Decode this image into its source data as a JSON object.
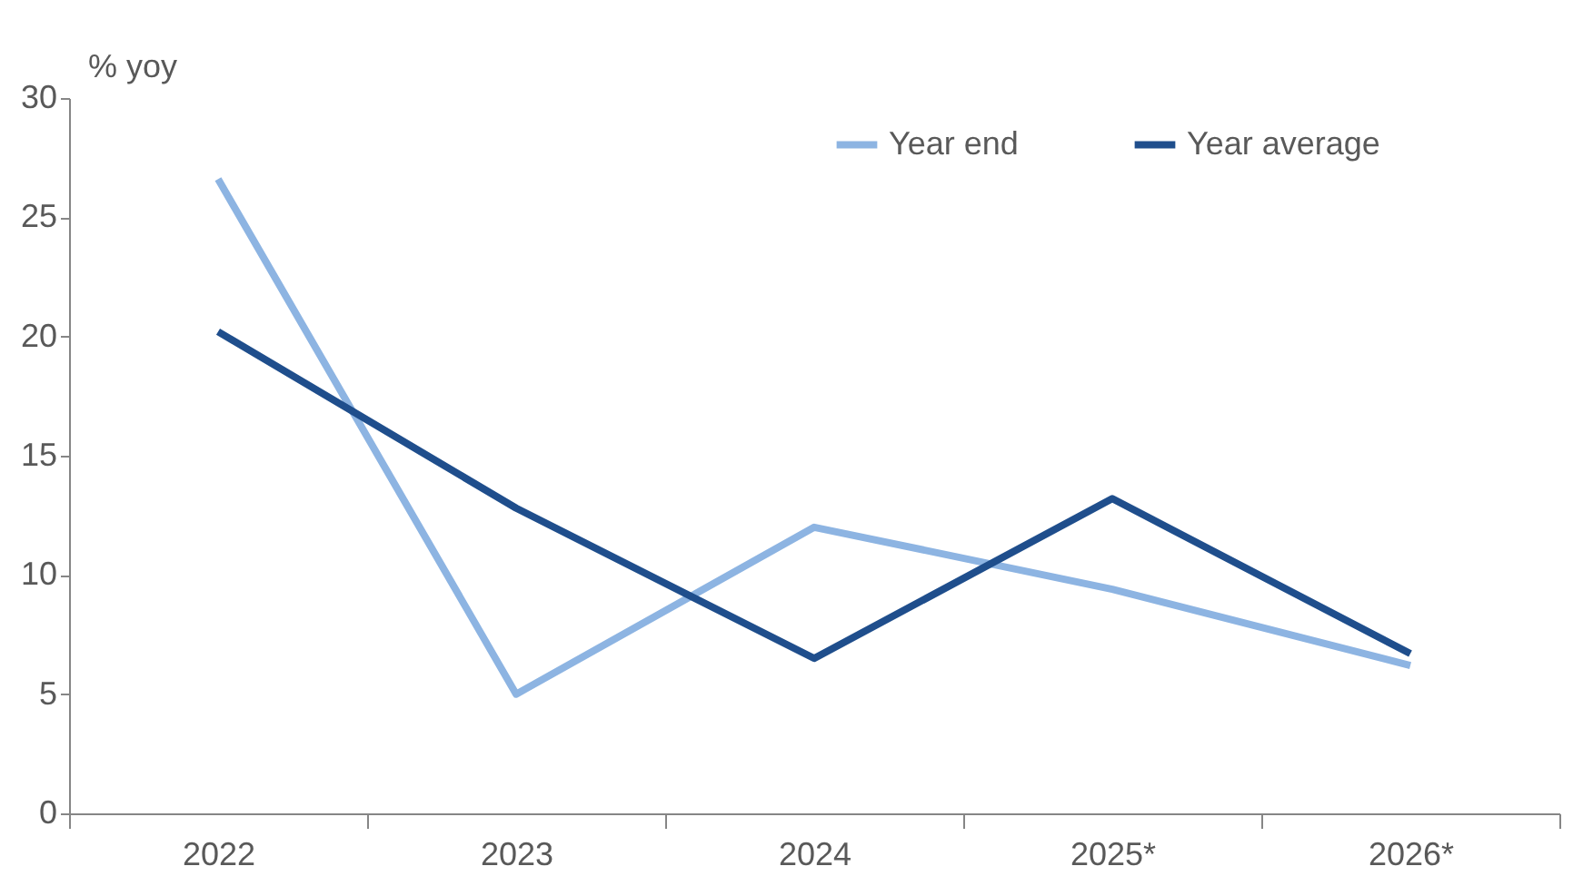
{
  "chart_data": {
    "type": "line",
    "ylabel": "% yoy",
    "categories": [
      "2022",
      "2023",
      "2024",
      "2025*",
      "2026*"
    ],
    "series": [
      {
        "name": "Year end",
        "color": "#8db4e2",
        "values": [
          26.6,
          5.0,
          12.0,
          9.4,
          6.2
        ]
      },
      {
        "name": "Year average",
        "color": "#1f4e8c",
        "values": [
          20.2,
          12.8,
          6.5,
          13.2,
          6.7
        ]
      }
    ],
    "ylim": [
      0,
      30
    ],
    "yticks": [
      0,
      5,
      10,
      15,
      20,
      25,
      30
    ],
    "grid": false,
    "legend": "top right",
    "marker": "none",
    "line_style": "solid"
  }
}
